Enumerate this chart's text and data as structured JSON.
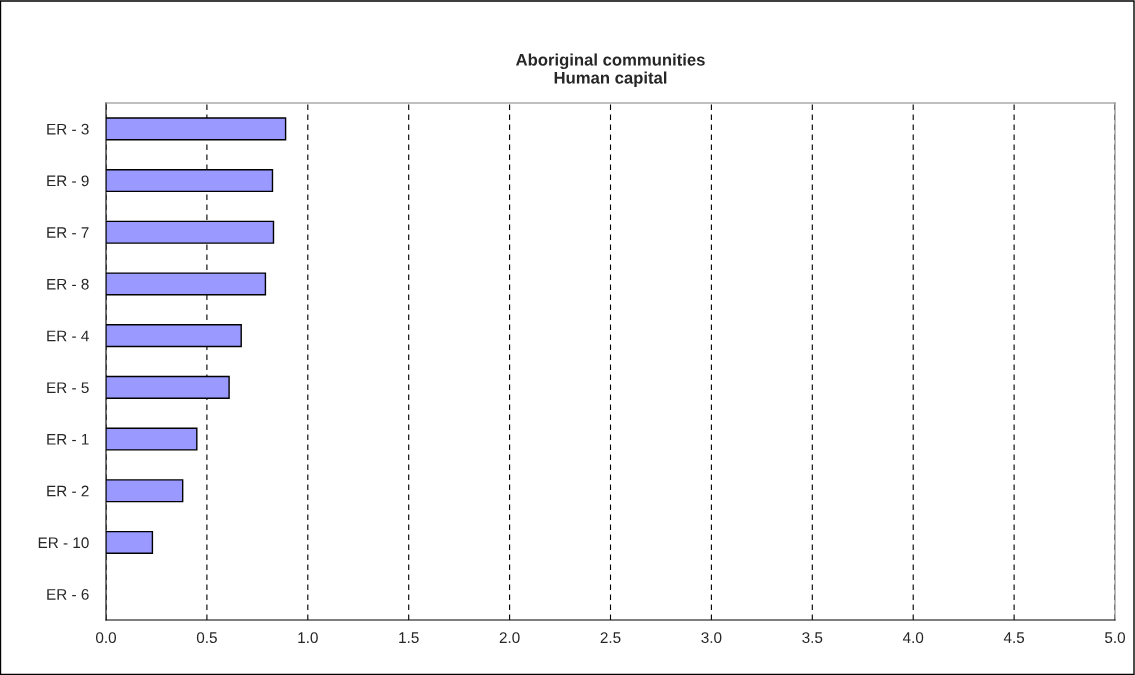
{
  "chart_data": {
    "type": "bar",
    "orientation": "horizontal",
    "title": "Aboriginal communities\nHuman capital",
    "categories": [
      "ER - 3",
      "ER - 9",
      "ER - 7",
      "ER - 8",
      "ER - 4",
      "ER - 5",
      "ER - 1",
      "ER - 2",
      "ER - 10",
      "ER - 6"
    ],
    "values": [
      0.89,
      0.825,
      0.83,
      0.79,
      0.67,
      0.61,
      0.45,
      0.38,
      0.23,
      null
    ],
    "color": "#9999ff",
    "xlim": [
      0,
      5
    ],
    "xticks": [
      {
        "value": 0,
        "label": "0.0"
      },
      {
        "value": 0.5,
        "label": "0.5"
      },
      {
        "value": 1,
        "label": "1.0"
      },
      {
        "value": 1.5,
        "label": "1.5"
      },
      {
        "value": 2,
        "label": "2.0"
      },
      {
        "value": 2.5,
        "label": "2.5"
      },
      {
        "value": 3,
        "label": "3.0"
      },
      {
        "value": 3.5,
        "label": "3.5"
      },
      {
        "value": 4,
        "label": "4.0"
      },
      {
        "value": 4.5,
        "label": "4.5"
      },
      {
        "value": 5,
        "label": "5.0"
      }
    ],
    "grid": "x",
    "line_style": "dashed"
  }
}
